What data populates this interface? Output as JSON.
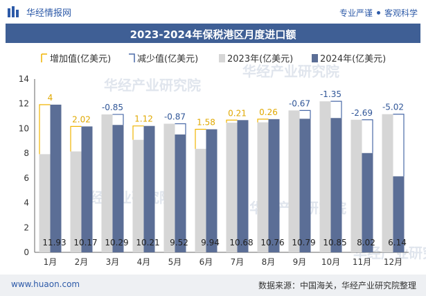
{
  "header": {
    "brand_name": "华经情报网",
    "tagline_left": "专业严谨",
    "tagline_right": "客观科学"
  },
  "chart_data": {
    "type": "bar",
    "title": "2023-2024年保税港区月度进口额",
    "categories": [
      "1月",
      "2月",
      "3月",
      "4月",
      "5月",
      "6月",
      "7月",
      "8月",
      "9月",
      "10月",
      "11月",
      "12月"
    ],
    "series": [
      {
        "name": "2023年(亿美元)",
        "values": [
          7.93,
          8.15,
          11.14,
          9.09,
          10.39,
          8.36,
          10.47,
          10.5,
          11.46,
          12.2,
          10.71,
          11.16
        ]
      },
      {
        "name": "2024年(亿美元)",
        "values": [
          11.93,
          10.17,
          10.29,
          10.21,
          9.52,
          9.94,
          10.68,
          10.76,
          10.79,
          10.85,
          8.02,
          6.14
        ]
      }
    ],
    "changes": [
      "4",
      "2.02",
      "-0.85",
      "1.12",
      "-0.87",
      "1.58",
      "0.21",
      "0.26",
      "-0.67",
      "-1.35",
      "-2.69",
      "-5.02"
    ],
    "change_legend": {
      "increase": "增加值(亿美元)",
      "decrease": "减少值(亿美元)"
    },
    "ylim": [
      0,
      14
    ],
    "yticks": [
      0,
      2,
      4,
      6,
      8,
      10,
      12,
      14
    ],
    "legend_position": "top",
    "grid": false,
    "colors": {
      "s2023": "#d6d6d6",
      "s2024": "#5b6e96",
      "increase": "#f0b400",
      "decrease": "#4a6aa8",
      "axis": "#666666",
      "increase_label": "#e0a800",
      "decrease_label": "#2f5597"
    },
    "watermark": "华经产业研究院"
  },
  "footer": {
    "website": "www.huaon.com",
    "source": "数据来源：中国海关，华经产业研究院整理"
  }
}
